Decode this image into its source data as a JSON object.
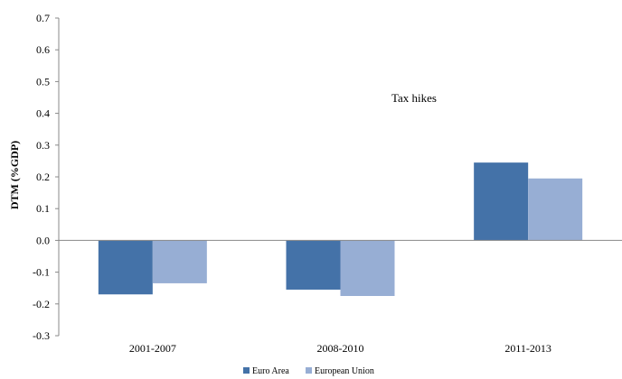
{
  "chart_data": {
    "type": "bar",
    "ylabel": "DTM (%GDP)",
    "xlabel": "",
    "categories": [
      "2001-2007",
      "2008-2010",
      "2011-2013"
    ],
    "series": [
      {
        "name": "Euro Area",
        "values": [
          -0.17,
          -0.155,
          0.245
        ],
        "color": "#4472A8"
      },
      {
        "name": "European Union",
        "values": [
          -0.135,
          -0.175,
          0.195
        ],
        "color": "#97AED4"
      }
    ],
    "ylim": [
      -0.3,
      0.7
    ],
    "yticks": [
      "-0.3",
      "-0.2",
      "-0.1",
      "0.0",
      "0.1",
      "0.2",
      "0.3",
      "0.4",
      "0.5",
      "0.6",
      "0.7"
    ],
    "annotation": "Tax hikes",
    "grid": false,
    "legend_position": "bottom"
  }
}
